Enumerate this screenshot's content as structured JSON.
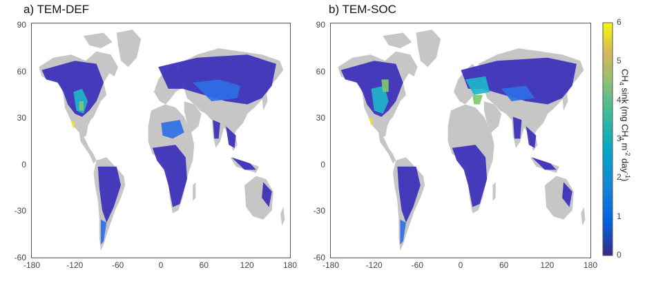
{
  "panels": [
    {
      "title": "a) TEM-DEF",
      "scenario": "def"
    },
    {
      "title": "b) TEM-SOC",
      "scenario": "soc"
    }
  ],
  "x_ticks": [
    "-180",
    "-120",
    "-60",
    "0",
    "60",
    "120",
    "180"
  ],
  "y_ticks": [
    "90",
    "60",
    "30",
    "0",
    "-30",
    "-60"
  ],
  "colorbar": {
    "ticks": [
      "6",
      "5",
      "4",
      "3",
      "2",
      "1",
      "0"
    ],
    "min": 0,
    "max": 6,
    "label_prefix": "CH",
    "label_sub1": "4",
    "label_mid": " sink (mg CH",
    "label_sub2": "4",
    "label_mid2": " m",
    "label_sup1": "-2",
    "label_mid3": " day",
    "label_sup2": "-1",
    "label_end": ")"
  },
  "colors": {
    "land_no_data": "#c6c6c6",
    "low": "#3a2fb8",
    "mid_low": "#2e6fe6",
    "mid": "#1fb5c9",
    "mid_high": "#7dc96b",
    "high": "#f2e51b"
  }
}
